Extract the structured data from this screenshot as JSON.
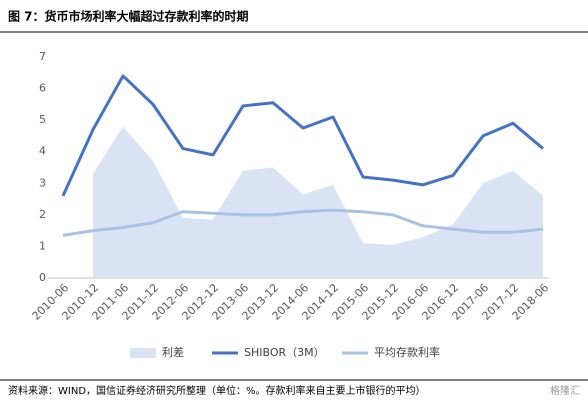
{
  "chart_data": {
    "type": "line_area",
    "title": "图 7：货币市场利率大幅超过存款利率的时期",
    "source": "资料来源：WIND，国信证券经济研究所整理（单位：%。存款利率来自主要上市银行的平均）",
    "watermark": "格隆汇",
    "categories": [
      "2010-06",
      "2010-12",
      "2011-06",
      "2011-12",
      "2012-06",
      "2012-12",
      "2013-06",
      "2013-12",
      "2014-06",
      "2014-12",
      "2015-06",
      "2015-12",
      "2016-06",
      "2016-12",
      "2017-06",
      "2017-12",
      "2018-06"
    ],
    "series": [
      {
        "name": "利差",
        "kind": "area",
        "color": "#dae3f3",
        "values": [
          null,
          3.3,
          4.8,
          3.7,
          1.9,
          1.85,
          3.4,
          3.5,
          2.65,
          2.95,
          1.1,
          1.05,
          1.3,
          1.7,
          3.0,
          3.4,
          2.6
        ]
      },
      {
        "name": "SHIBOR（3M）",
        "kind": "line",
        "color": "#4472c4",
        "values": [
          2.6,
          4.7,
          6.4,
          5.5,
          4.1,
          3.9,
          5.45,
          5.55,
          4.75,
          5.1,
          3.2,
          3.1,
          2.95,
          3.25,
          4.5,
          4.9,
          4.1
        ]
      },
      {
        "name": "平均存款利率",
        "kind": "line",
        "color": "#a9c1e4",
        "values": [
          1.35,
          1.5,
          1.6,
          1.75,
          2.1,
          2.05,
          2.0,
          2.0,
          2.1,
          2.15,
          2.1,
          2.0,
          1.65,
          1.55,
          1.45,
          1.45,
          1.55
        ]
      }
    ],
    "ylim": [
      0,
      7
    ],
    "yticks": [
      0,
      1,
      2,
      3,
      4,
      5,
      6,
      7
    ],
    "grid": false,
    "legend": "bottom"
  }
}
